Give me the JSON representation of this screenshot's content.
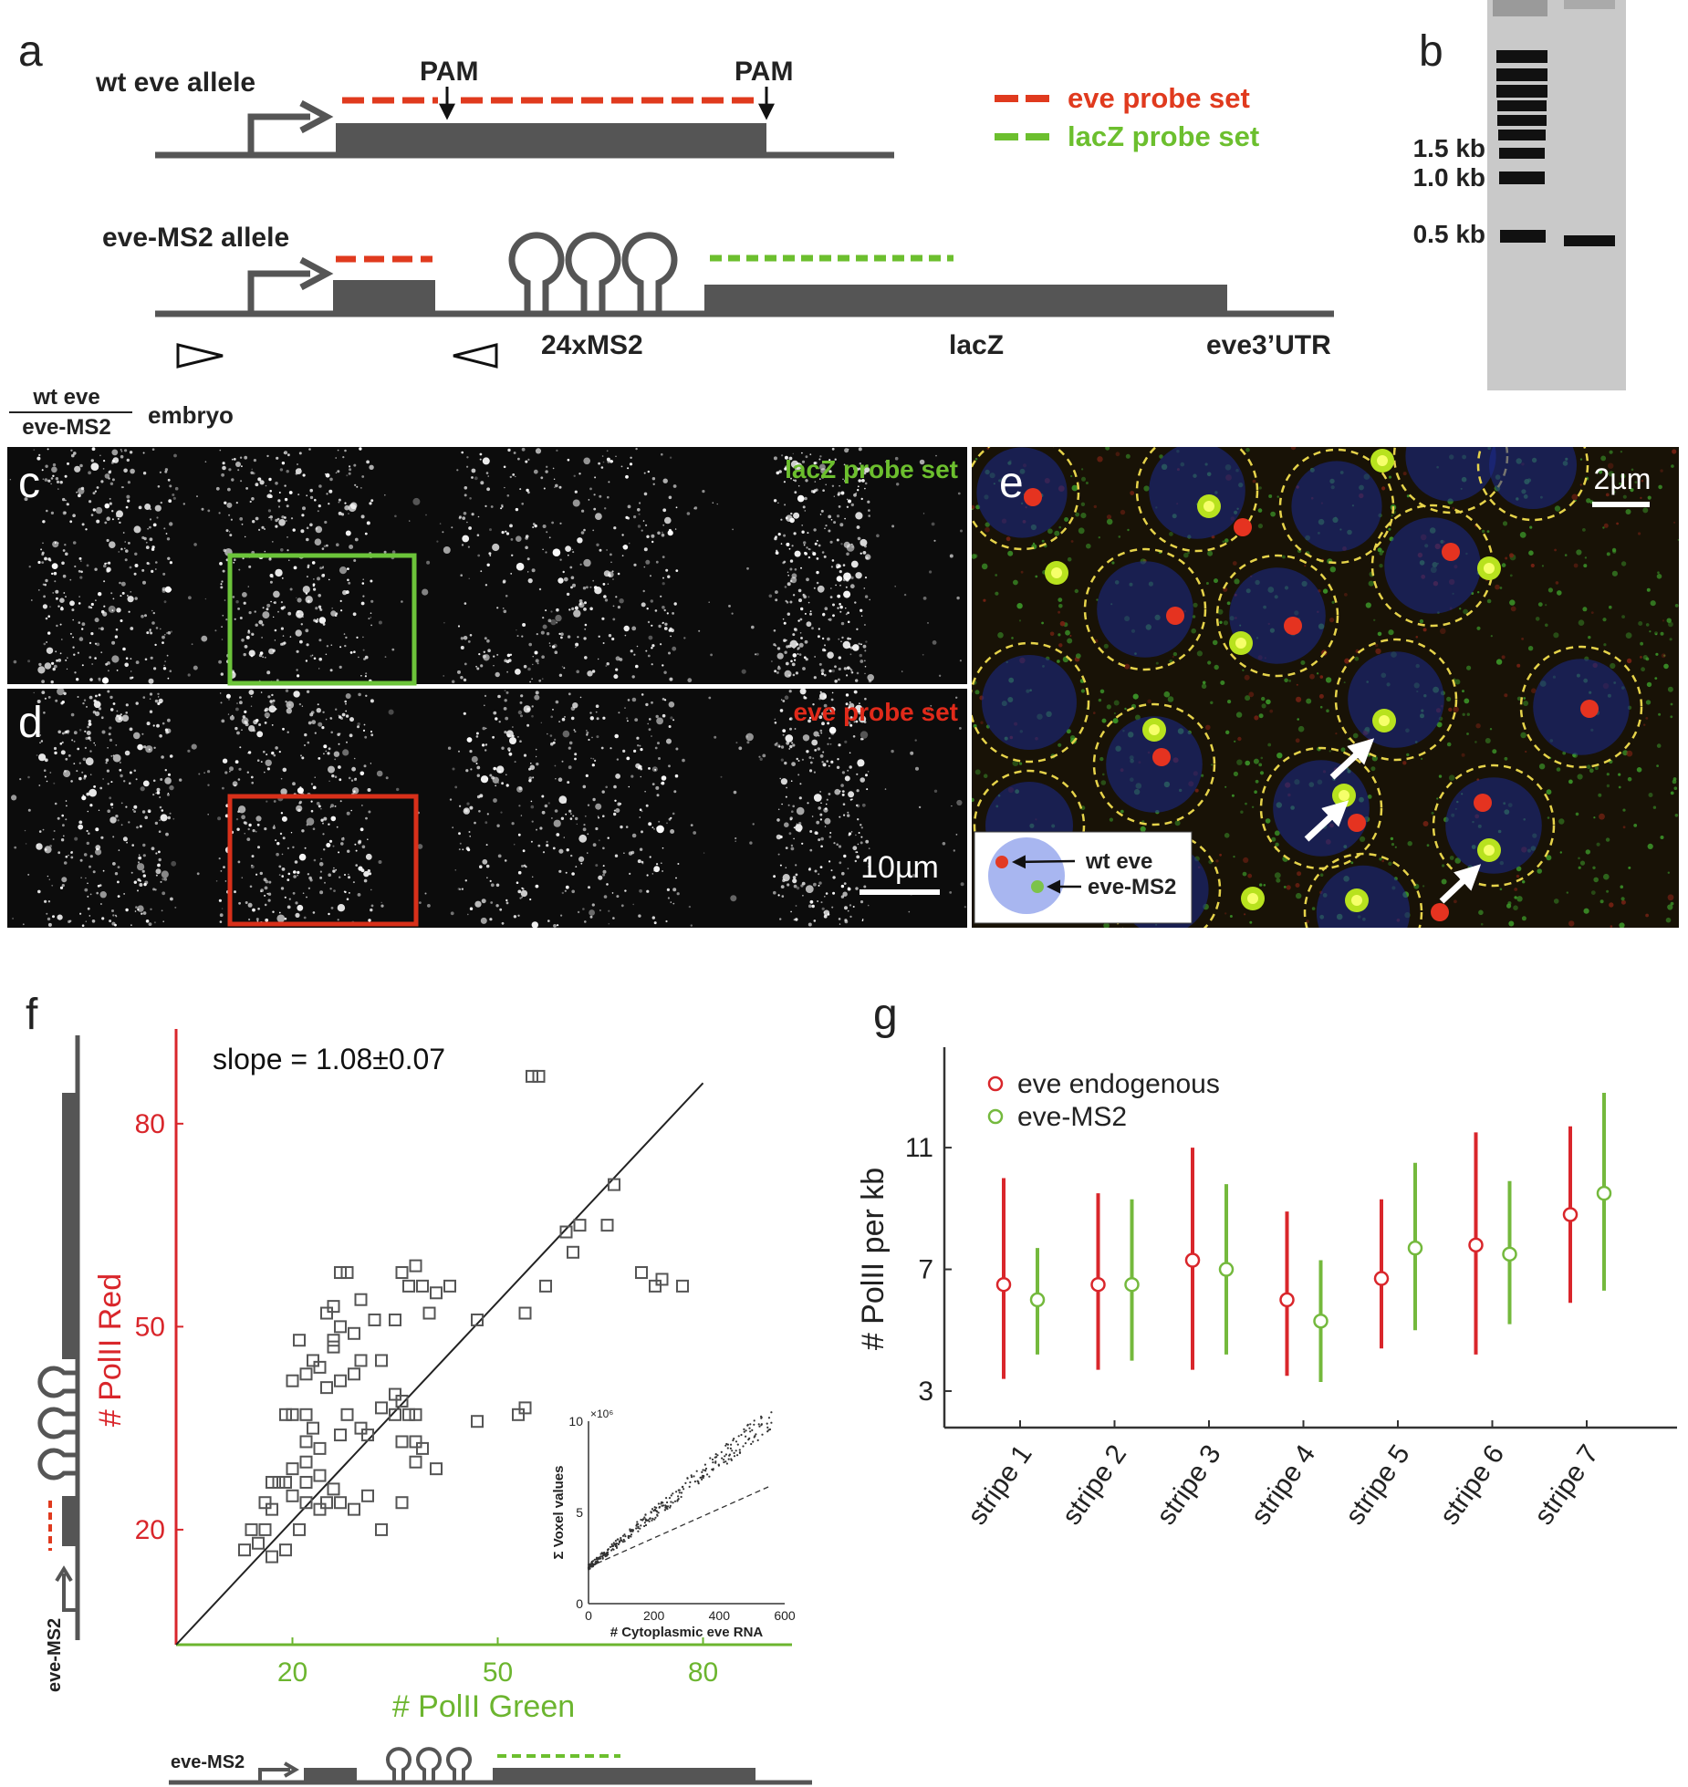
{
  "panel_labels": {
    "a": "a",
    "b": "b",
    "c": "c",
    "d": "d",
    "e": "e",
    "f": "f",
    "g": "g"
  },
  "panel_a": {
    "wt_allele": "wt eve allele",
    "ms2_allele": "eve-MS2 allele",
    "pam1": "PAM",
    "pam2": "PAM",
    "label_24xms2": "24xMS2",
    "label_lacz": "lacZ",
    "label_utr": "eve3’UTR",
    "legend_eve": "eve probe set",
    "legend_lacz": "lacZ probe set",
    "color_eve": "#e03a1e",
    "color_lacz": "#6cbf2e"
  },
  "panel_b": {
    "ladder": [
      "1.5 kb",
      "1.0 kb",
      "0.5 kb"
    ]
  },
  "genotype": {
    "numerator": "wt eve",
    "denominator": "eve-MS2",
    "suffix": "embryo"
  },
  "panel_c": {
    "label": "lacZ probe set"
  },
  "panel_d": {
    "label": "eve probe set",
    "scale": "10µm"
  },
  "panel_e": {
    "scale": "2µm",
    "legend_wt": "wt eve",
    "legend_ms2": "eve-MS2"
  },
  "panel_f": {
    "slope": "slope = 1.08±0.07",
    "xlabel": "# PolII Green",
    "ylabel": "# PolII Red",
    "side_label": "eve-MS2",
    "bottom_label": "eve-MS2",
    "inset": {
      "xlabel": "# Cytoplasmic eve RNA",
      "ylabel": "Σ Voxel values",
      "exp": "×10⁶"
    }
  },
  "panel_g": {
    "ylabel": "# PolII per kb",
    "legend": [
      "eve endogenous",
      "eve-MS2"
    ]
  },
  "chart_data": [
    {
      "type": "scatter",
      "xlabel": "# PolII Green",
      "ylabel": "# PolII Red",
      "xlim": [
        3,
        93
      ],
      "ylim": [
        3,
        94
      ],
      "xticks": [
        20,
        50,
        80
      ],
      "yticks": [
        20,
        50,
        80
      ],
      "annotation": "slope = 1.08±0.07",
      "fit_line": {
        "x": [
          3,
          80
        ],
        "y": [
          3,
          86
        ]
      },
      "points": [
        [
          55,
          87
        ],
        [
          56,
          87
        ],
        [
          27,
          58
        ],
        [
          28,
          58
        ],
        [
          36,
          58
        ],
        [
          38,
          59
        ],
        [
          37,
          56
        ],
        [
          39,
          56
        ],
        [
          41,
          55
        ],
        [
          43,
          56
        ],
        [
          47,
          51
        ],
        [
          40,
          52
        ],
        [
          35,
          51
        ],
        [
          30,
          54
        ],
        [
          26,
          53
        ],
        [
          25,
          52
        ],
        [
          27,
          50
        ],
        [
          29,
          49
        ],
        [
          32,
          51
        ],
        [
          26,
          48
        ],
        [
          21,
          48
        ],
        [
          23,
          45
        ],
        [
          24,
          44
        ],
        [
          22,
          43
        ],
        [
          20,
          42
        ],
        [
          25,
          41
        ],
        [
          27,
          42
        ],
        [
          30,
          45
        ],
        [
          33,
          45
        ],
        [
          29,
          43
        ],
        [
          26,
          47
        ],
        [
          20,
          37
        ],
        [
          19,
          37
        ],
        [
          22,
          37
        ],
        [
          35,
          40
        ],
        [
          36,
          39
        ],
        [
          33,
          38
        ],
        [
          35,
          37
        ],
        [
          28,
          37
        ],
        [
          30,
          35
        ],
        [
          27,
          34
        ],
        [
          31,
          34
        ],
        [
          37,
          37
        ],
        [
          38,
          37
        ],
        [
          36,
          33
        ],
        [
          38,
          33
        ],
        [
          39,
          32
        ],
        [
          24,
          32
        ],
        [
          22,
          33
        ],
        [
          23,
          35
        ],
        [
          22,
          30
        ],
        [
          20,
          29
        ],
        [
          19,
          27
        ],
        [
          17,
          27
        ],
        [
          18,
          27
        ],
        [
          16,
          24
        ],
        [
          17,
          23
        ],
        [
          16,
          20
        ],
        [
          14,
          20
        ],
        [
          15,
          18
        ],
        [
          13,
          17
        ],
        [
          17,
          16
        ],
        [
          19,
          17
        ],
        [
          21,
          20
        ],
        [
          22,
          24
        ],
        [
          20,
          25
        ],
        [
          22,
          27
        ],
        [
          24,
          28
        ],
        [
          26,
          26
        ],
        [
          25,
          24
        ],
        [
          24,
          23
        ],
        [
          27,
          24
        ],
        [
          29,
          23
        ],
        [
          31,
          25
        ],
        [
          33,
          20
        ],
        [
          36,
          24
        ],
        [
          38,
          30
        ],
        [
          41,
          29
        ],
        [
          47,
          36
        ],
        [
          53,
          37
        ],
        [
          54,
          38
        ],
        [
          54,
          52
        ],
        [
          57,
          56
        ],
        [
          60,
          64
        ],
        [
          62,
          65
        ],
        [
          61,
          61
        ],
        [
          67,
          71
        ],
        [
          66,
          65
        ],
        [
          71,
          58
        ],
        [
          74,
          57
        ],
        [
          73,
          56
        ],
        [
          77,
          56
        ]
      ],
      "inset": {
        "type": "scatter",
        "xlabel": "# Cytoplasmic eve RNA",
        "ylabel": "Σ Voxel values",
        "xlim": [
          0,
          600
        ],
        "ylim": [
          0,
          10
        ],
        "xticks": [
          0,
          200,
          400,
          600
        ],
        "yticks": [
          0,
          5,
          10
        ],
        "scale_note": "×10⁶"
      }
    },
    {
      "type": "errorbar",
      "ylabel": "# PolII per kb",
      "categories": [
        "stripe 1",
        "stripe 2",
        "stripe 3",
        "stripe 4",
        "stripe 5",
        "stripe 6",
        "stripe 7"
      ],
      "ylim": [
        1.8,
        14.3
      ],
      "yticks": [
        3,
        7,
        11
      ],
      "series": [
        {
          "name": "eve endogenous",
          "color": "#d9262b",
          "values": [
            6.5,
            6.5,
            7.3,
            6.0,
            6.7,
            7.8,
            8.8
          ],
          "low": [
            3.4,
            3.7,
            3.7,
            3.5,
            4.4,
            4.2,
            5.9
          ],
          "high": [
            10.0,
            9.5,
            11.0,
            8.9,
            9.3,
            11.5,
            11.7
          ]
        },
        {
          "name": "eve-MS2",
          "color": "#74b93d",
          "values": [
            6.0,
            6.5,
            7.0,
            5.3,
            7.7,
            7.5,
            9.5
          ],
          "low": [
            4.2,
            4.0,
            4.2,
            3.3,
            5.0,
            5.2,
            6.3
          ],
          "high": [
            7.7,
            9.3,
            9.8,
            7.3,
            10.5,
            9.9,
            12.8
          ]
        }
      ]
    }
  ]
}
